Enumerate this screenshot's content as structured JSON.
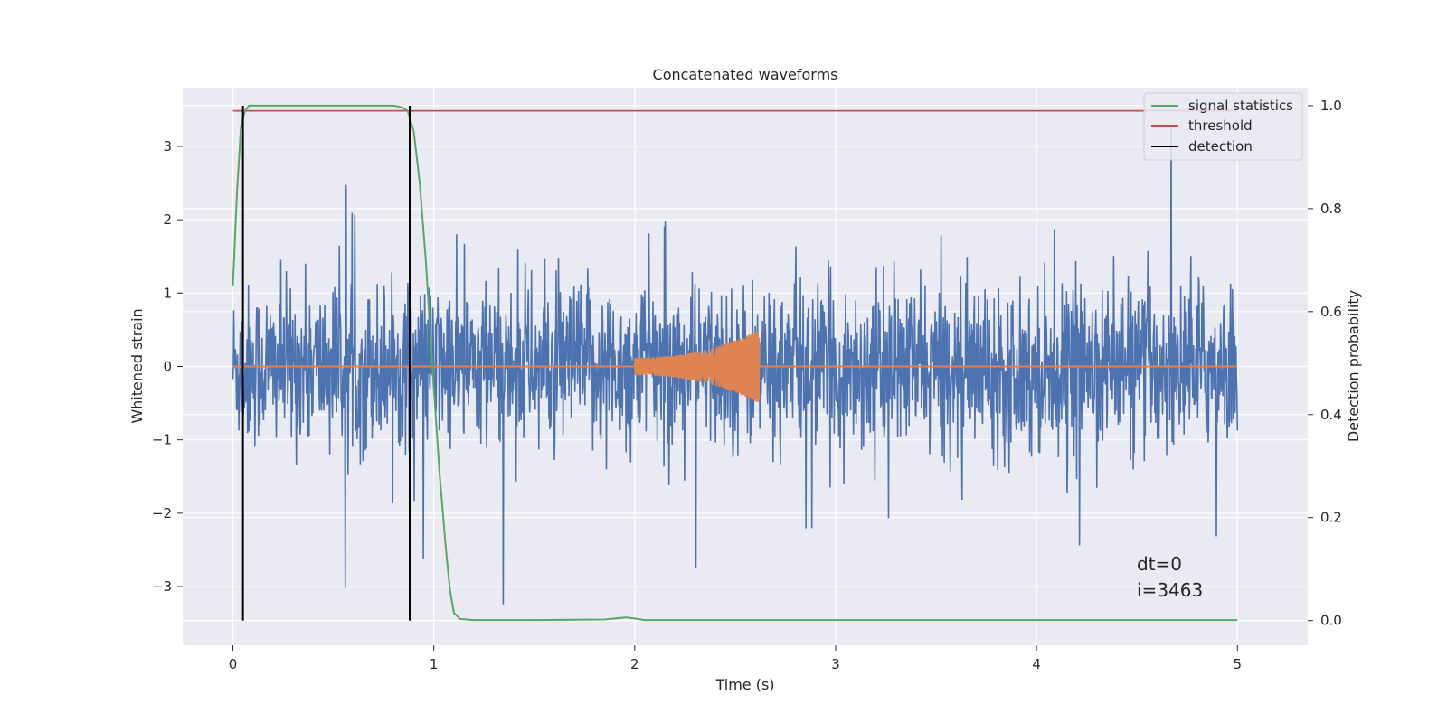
{
  "chart_data": {
    "type": "line",
    "title": "Concatenated waveforms",
    "xlabel": "Time (s)",
    "ylabel_left": "Whitened strain",
    "ylabel_right": "Detection probability",
    "xlim": [
      -0.25,
      5.35
    ],
    "ylim_left": [
      -3.8,
      3.8
    ],
    "ylim_right": [
      -0.048,
      1.035
    ],
    "x_ticks": [
      0,
      1,
      2,
      3,
      4,
      5
    ],
    "x_tick_labels": [
      "0",
      "1",
      "2",
      "3",
      "4",
      "5"
    ],
    "y_left_ticks": [
      -3,
      -2,
      -1,
      0,
      1,
      2,
      3
    ],
    "y_left_tick_labels": [
      "−3",
      "−2",
      "−1",
      "0",
      "1",
      "2",
      "3"
    ],
    "y_right_ticks": [
      0.0,
      0.2,
      0.4,
      0.6,
      0.8,
      1.0
    ],
    "y_right_tick_labels": [
      "0.0",
      "0.2",
      "0.4",
      "0.6",
      "0.8",
      "1.0"
    ],
    "grid": true,
    "legend_position": "top-right",
    "legend": [
      "signal statistics",
      "threshold",
      "detection"
    ],
    "series": [
      {
        "name": "whitened noise + signal",
        "axis": "left",
        "color": "#4c72b0",
        "kind": "noise",
        "x_range": [
          0,
          5
        ],
        "amplitude_typical": 1.0,
        "amplitude_peak": 3.5,
        "description_values": {
          "min": -3.35,
          "max": 3.5
        }
      },
      {
        "name": "injected signal",
        "axis": "left",
        "color": "#dd8452",
        "kind": "chirp",
        "x_range": [
          2.0,
          2.62
        ],
        "amplitude_start": 0.12,
        "amplitude_end": 0.5
      },
      {
        "name": "signal statistics",
        "axis": "right",
        "color": "#55a868",
        "x": [
          0.0,
          0.02,
          0.04,
          0.06,
          0.08,
          0.12,
          0.3,
          0.6,
          0.8,
          0.84,
          0.87,
          0.9,
          0.93,
          0.96,
          1.0,
          1.03,
          1.06,
          1.08,
          1.1,
          1.13,
          1.2,
          1.5,
          1.85,
          1.93,
          1.96,
          2.0,
          2.05,
          2.2,
          3.0,
          4.0,
          5.0
        ],
        "y": [
          0.65,
          0.83,
          0.96,
          0.99,
          1.0,
          1.0,
          1.0,
          1.0,
          1.0,
          0.997,
          0.99,
          0.95,
          0.85,
          0.7,
          0.45,
          0.28,
          0.14,
          0.06,
          0.015,
          0.003,
          0.001,
          0.001,
          0.002,
          0.005,
          0.006,
          0.004,
          0.001,
          0.001,
          0.001,
          0.001,
          0.001
        ]
      },
      {
        "name": "threshold",
        "axis": "right",
        "color": "#c44e52",
        "x": [
          0,
          5
        ],
        "y": [
          0.99,
          0.99
        ]
      },
      {
        "name": "detection",
        "axis": "right",
        "color": "#000000",
        "kind": "vlines",
        "x": [
          0.05,
          0.88
        ],
        "y_range": [
          0,
          1
        ]
      }
    ],
    "annotation": {
      "lines": [
        "dt=0",
        "i=3463"
      ],
      "x": 4.5,
      "y": -3.3
    }
  }
}
